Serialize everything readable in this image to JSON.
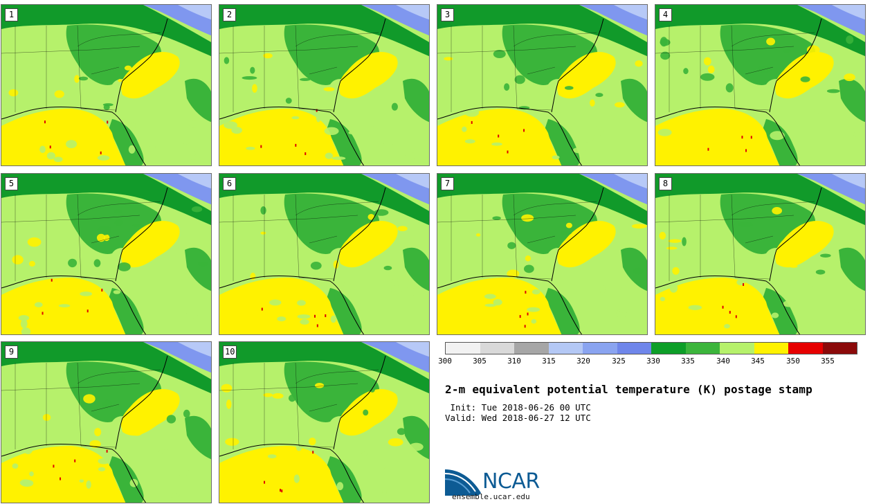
{
  "panels": [
    {
      "label": "1"
    },
    {
      "label": "2"
    },
    {
      "label": "3"
    },
    {
      "label": "4"
    },
    {
      "label": "5"
    },
    {
      "label": "6"
    },
    {
      "label": "7"
    },
    {
      "label": "8"
    },
    {
      "label": "9"
    },
    {
      "label": "10"
    }
  ],
  "colorbar": {
    "ticks": [
      "300",
      "305",
      "310",
      "315",
      "320",
      "325",
      "330",
      "335",
      "340",
      "345",
      "350",
      "355"
    ],
    "colors": [
      "#f2f2f2",
      "#d9d9d9",
      "#a6a6a6",
      "#b4c8f5",
      "#8aa4f0",
      "#6f86ea",
      "#0d9e28",
      "#3cb53c",
      "#b6f16b",
      "#fff200",
      "#e60000",
      "#8b0a0a"
    ]
  },
  "title": "2-m equivalent potential temperature (K) postage stamp",
  "init": " Init: Tue 2018-06-26 00 UTC",
  "valid": "Valid: Wed 2018-06-27 12 UTC",
  "logo": {
    "text": "NCAR",
    "url": "ensemble.ucar.edu"
  },
  "colors": {
    "green_dark": "#119a2a",
    "green_mid": "#3ab43a",
    "green_light": "#b6f16b",
    "yellow": "#fff200",
    "red": "#dd0000",
    "blue": "#7f97ef",
    "blue_light": "#b7c9f7",
    "border": "#000000"
  }
}
